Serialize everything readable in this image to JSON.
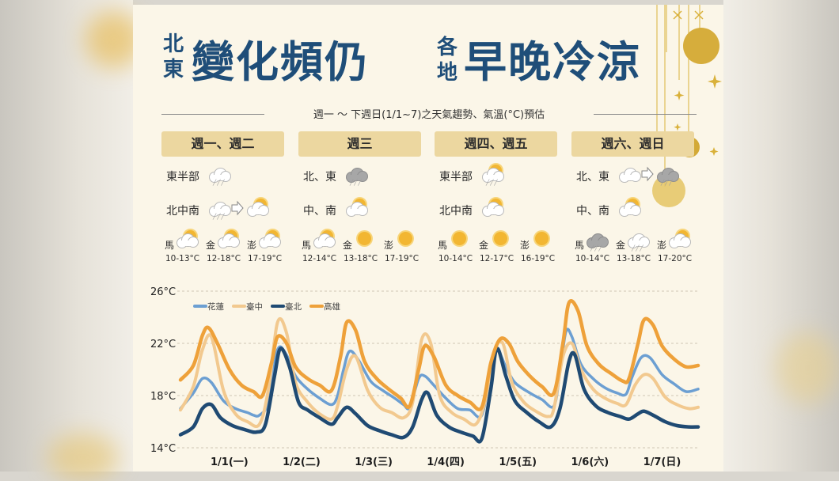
{
  "headline": {
    "left_small": [
      "北",
      "東"
    ],
    "left_big": "變化頻仍",
    "right_small": [
      "各",
      "地"
    ],
    "right_big": "早晚冷涼"
  },
  "subtitle": "週一 ～ 下週日(1/1~7)之天氣趨勢、氣溫(°C)預估",
  "forecast": {
    "columns": [
      {
        "period": "週一、週二",
        "rows": [
          {
            "region": "東半部",
            "icons": [
              "rain-cloud-icon"
            ]
          },
          {
            "region": "北中南",
            "icons": [
              "rain-cloud-icon",
              "arrow-right-icon",
              "partly-sunny-icon"
            ]
          }
        ],
        "islands": [
          {
            "name": "馬",
            "icon": "partly-sunny-icon",
            "temp": "10-13°C"
          },
          {
            "name": "金",
            "icon": "partly-sunny-icon",
            "temp": "12-18°C"
          },
          {
            "name": "澎",
            "icon": "partly-sunny-icon",
            "temp": "17-19°C"
          }
        ]
      },
      {
        "period": "週三",
        "rows": [
          {
            "region": "北、東",
            "icons": [
              "dark-rain-cloud-icon"
            ]
          },
          {
            "region": "中、南",
            "icons": [
              "partly-sunny-icon"
            ]
          }
        ],
        "islands": [
          {
            "name": "馬",
            "icon": "partly-sunny-icon",
            "temp": "12-14°C"
          },
          {
            "name": "金",
            "icon": "sunny-icon",
            "temp": "13-18°C"
          },
          {
            "name": "澎",
            "icon": "sunny-icon",
            "temp": "17-19°C"
          }
        ]
      },
      {
        "period": "週四、週五",
        "rows": [
          {
            "region": "東半部",
            "icons": [
              "partly-sunny-rain-icon"
            ]
          },
          {
            "region": "北中南",
            "icons": [
              "partly-sunny-icon"
            ]
          }
        ],
        "islands": [
          {
            "name": "馬",
            "icon": "sunny-icon",
            "temp": "10-14°C"
          },
          {
            "name": "金",
            "icon": "sunny-icon",
            "temp": "12-17°C"
          },
          {
            "name": "澎",
            "icon": "sunny-icon",
            "temp": "16-19°C"
          }
        ]
      },
      {
        "period": "週六、週日",
        "rows": [
          {
            "region": "北、東",
            "icons": [
              "cloud-icon",
              "arrow-right-icon",
              "dark-rain-cloud-icon"
            ]
          },
          {
            "region": "中、南",
            "icons": [
              "partly-sunny-icon"
            ]
          }
        ],
        "islands": [
          {
            "name": "馬",
            "icon": "dark-rain-cloud-icon",
            "temp": "10-14°C"
          },
          {
            "name": "金",
            "icon": "rain-cloud-icon",
            "temp": "13-18°C"
          },
          {
            "name": "澎",
            "icon": "partly-sunny-icon",
            "temp": "17-20°C"
          }
        ]
      }
    ]
  },
  "colors": {
    "title_navy": "#1f4e79",
    "pill": "#ecd7a0",
    "card_bg": "#fbf6e8",
    "hualien": "#6c9fd2",
    "taichung": "#f2c98f",
    "taipei": "#1f4a73",
    "kaohsiung": "#eea13a",
    "gold": "#d9b13a"
  },
  "chart_data": {
    "type": "line",
    "ylim": [
      14,
      26
    ],
    "yticks": [
      14,
      18,
      22,
      26
    ],
    "ytick_labels": [
      "14°C",
      "18°C",
      "22°C",
      "26°C"
    ],
    "x_unit_note": "hour index, 0 = 1/1 00:00 … 168 = 1/8 00:00",
    "xlim": [
      -4.3,
      168
    ],
    "categories": [
      "1/1(一)",
      "1/2(二)",
      "1/3(三)",
      "1/4(四)",
      "1/5(五)",
      "1/6(六)",
      "1/7(日)"
    ],
    "category_x": [
      12,
      36,
      60,
      84,
      108,
      132,
      156
    ],
    "legend_placement": "top-left",
    "grid": "horizontal-dashed",
    "series": [
      {
        "name": "花蓮",
        "color_key": "hualien",
        "points": [
          [
            -4.3,
            17.0
          ],
          [
            0,
            18.2
          ],
          [
            3,
            19.3
          ],
          [
            6,
            19.0
          ],
          [
            10,
            17.6
          ],
          [
            14,
            17.0
          ],
          [
            18,
            16.7
          ],
          [
            20,
            16.5
          ],
          [
            22,
            16.5
          ],
          [
            25,
            17.5
          ],
          [
            28,
            21.5
          ],
          [
            31,
            21.1
          ],
          [
            34,
            19.5
          ],
          [
            38,
            18.5
          ],
          [
            42,
            17.8
          ],
          [
            46,
            17.3
          ],
          [
            48,
            18.0
          ],
          [
            50,
            20.0
          ],
          [
            52,
            21.4
          ],
          [
            55,
            20.7
          ],
          [
            59,
            19.1
          ],
          [
            63,
            18.4
          ],
          [
            67,
            17.8
          ],
          [
            70,
            17.3
          ],
          [
            72,
            17.1
          ],
          [
            75,
            19.3
          ],
          [
            77,
            19.5
          ],
          [
            80,
            18.8
          ],
          [
            84,
            17.8
          ],
          [
            88,
            17.0
          ],
          [
            92,
            16.9
          ],
          [
            96,
            16.5
          ],
          [
            99,
            20.0
          ],
          [
            101,
            21.5
          ],
          [
            104,
            20.2
          ],
          [
            107,
            19.0
          ],
          [
            112,
            18.2
          ],
          [
            116,
            17.7
          ],
          [
            120,
            17.2
          ],
          [
            122,
            19.8
          ],
          [
            124,
            22.9
          ],
          [
            126,
            22.5
          ],
          [
            129,
            20.4
          ],
          [
            133,
            19.3
          ],
          [
            137,
            18.6
          ],
          [
            141,
            18.2
          ],
          [
            144,
            18.1
          ],
          [
            146,
            19.4
          ],
          [
            149,
            20.9
          ],
          [
            152,
            20.9
          ],
          [
            156,
            19.6
          ],
          [
            160,
            18.9
          ],
          [
            164,
            18.3
          ],
          [
            168,
            18.5
          ]
        ]
      },
      {
        "name": "臺中",
        "color_key": "taichung",
        "points": [
          [
            -4.3,
            16.9
          ],
          [
            0,
            18.7
          ],
          [
            3,
            21.5
          ],
          [
            6,
            22.5
          ],
          [
            10,
            18.4
          ],
          [
            14,
            16.6
          ],
          [
            18,
            16.0
          ],
          [
            22,
            15.8
          ],
          [
            25,
            18.5
          ],
          [
            28,
            23.6
          ],
          [
            31,
            22.8
          ],
          [
            34,
            19.0
          ],
          [
            38,
            17.5
          ],
          [
            42,
            16.6
          ],
          [
            46,
            16.2
          ],
          [
            48,
            17.2
          ],
          [
            51,
            20.0
          ],
          [
            54,
            21.0
          ],
          [
            58,
            18.4
          ],
          [
            62,
            17.1
          ],
          [
            66,
            16.7
          ],
          [
            70,
            16.3
          ],
          [
            73,
            17.5
          ],
          [
            76,
            22.3
          ],
          [
            79,
            22.0
          ],
          [
            82,
            18.0
          ],
          [
            86,
            16.7
          ],
          [
            90,
            16.2
          ],
          [
            94,
            15.8
          ],
          [
            97,
            17.5
          ],
          [
            100,
            21.3
          ],
          [
            103,
            22.0
          ],
          [
            106,
            19.0
          ],
          [
            110,
            17.5
          ],
          [
            114,
            16.8
          ],
          [
            118,
            16.4
          ],
          [
            120,
            17.0
          ],
          [
            123,
            21.0
          ],
          [
            126,
            22.0
          ],
          [
            129,
            20.0
          ],
          [
            133,
            18.5
          ],
          [
            137,
            17.8
          ],
          [
            141,
            17.4
          ],
          [
            144,
            17.3
          ],
          [
            147,
            18.8
          ],
          [
            150,
            19.6
          ],
          [
            153,
            19.3
          ],
          [
            157,
            17.9
          ],
          [
            161,
            17.3
          ],
          [
            165,
            17.0
          ],
          [
            168,
            17.1
          ]
        ]
      },
      {
        "name": "臺北",
        "color_key": "taipei",
        "points": [
          [
            -4.3,
            15.0
          ],
          [
            0,
            15.6
          ],
          [
            3,
            17.0
          ],
          [
            6,
            17.3
          ],
          [
            9,
            16.3
          ],
          [
            13,
            15.7
          ],
          [
            17,
            15.4
          ],
          [
            21,
            15.2
          ],
          [
            24,
            15.8
          ],
          [
            27,
            19.5
          ],
          [
            29,
            21.6
          ],
          [
            32,
            20.2
          ],
          [
            35,
            17.5
          ],
          [
            38,
            16.9
          ],
          [
            42,
            16.3
          ],
          [
            46,
            15.8
          ],
          [
            48,
            16.3
          ],
          [
            51,
            17.1
          ],
          [
            54,
            16.6
          ],
          [
            58,
            15.7
          ],
          [
            62,
            15.3
          ],
          [
            66,
            15.0
          ],
          [
            70,
            14.8
          ],
          [
            73,
            15.6
          ],
          [
            76,
            17.7
          ],
          [
            78,
            18.2
          ],
          [
            81,
            16.5
          ],
          [
            85,
            15.6
          ],
          [
            89,
            15.2
          ],
          [
            93,
            14.9
          ],
          [
            96,
            14.7
          ],
          [
            99,
            18.5
          ],
          [
            101,
            21.6
          ],
          [
            104,
            19.5
          ],
          [
            107,
            17.6
          ],
          [
            111,
            16.7
          ],
          [
            115,
            16.0
          ],
          [
            119,
            15.6
          ],
          [
            122,
            17.0
          ],
          [
            125,
            20.6
          ],
          [
            127,
            21.1
          ],
          [
            130,
            18.5
          ],
          [
            134,
            17.2
          ],
          [
            138,
            16.7
          ],
          [
            142,
            16.4
          ],
          [
            145,
            16.2
          ],
          [
            148,
            16.6
          ],
          [
            150,
            16.8
          ],
          [
            153,
            16.5
          ],
          [
            157,
            16.0
          ],
          [
            161,
            15.7
          ],
          [
            165,
            15.6
          ],
          [
            168,
            15.6
          ]
        ]
      },
      {
        "name": "高雄",
        "color_key": "kaohsiung",
        "points": [
          [
            -4.3,
            19.2
          ],
          [
            0,
            20.3
          ],
          [
            3,
            22.6
          ],
          [
            5,
            23.2
          ],
          [
            8,
            22.0
          ],
          [
            12,
            20.0
          ],
          [
            16,
            18.8
          ],
          [
            20,
            18.3
          ],
          [
            23,
            18.0
          ],
          [
            26,
            20.5
          ],
          [
            28,
            22.5
          ],
          [
            31,
            22.0
          ],
          [
            34,
            20.2
          ],
          [
            38,
            19.3
          ],
          [
            42,
            18.8
          ],
          [
            46,
            18.4
          ],
          [
            49,
            21.0
          ],
          [
            51,
            23.6
          ],
          [
            54,
            23.0
          ],
          [
            57,
            20.6
          ],
          [
            61,
            19.3
          ],
          [
            65,
            18.5
          ],
          [
            69,
            17.8
          ],
          [
            72,
            17.2
          ],
          [
            75,
            20.0
          ],
          [
            77,
            21.8
          ],
          [
            80,
            21.0
          ],
          [
            84,
            18.8
          ],
          [
            88,
            18.0
          ],
          [
            92,
            17.5
          ],
          [
            96,
            17.1
          ],
          [
            99,
            20.5
          ],
          [
            102,
            22.3
          ],
          [
            105,
            22.0
          ],
          [
            108,
            20.6
          ],
          [
            112,
            19.5
          ],
          [
            116,
            18.7
          ],
          [
            120,
            18.2
          ],
          [
            123,
            22.0
          ],
          [
            125,
            25.1
          ],
          [
            128,
            24.5
          ],
          [
            131,
            21.8
          ],
          [
            135,
            20.4
          ],
          [
            139,
            19.7
          ],
          [
            143,
            19.1
          ],
          [
            145,
            19.3
          ],
          [
            148,
            22.0
          ],
          [
            150,
            23.8
          ],
          [
            153,
            23.4
          ],
          [
            156,
            21.8
          ],
          [
            160,
            20.8
          ],
          [
            164,
            20.2
          ],
          [
            168,
            20.3
          ]
        ]
      }
    ]
  }
}
